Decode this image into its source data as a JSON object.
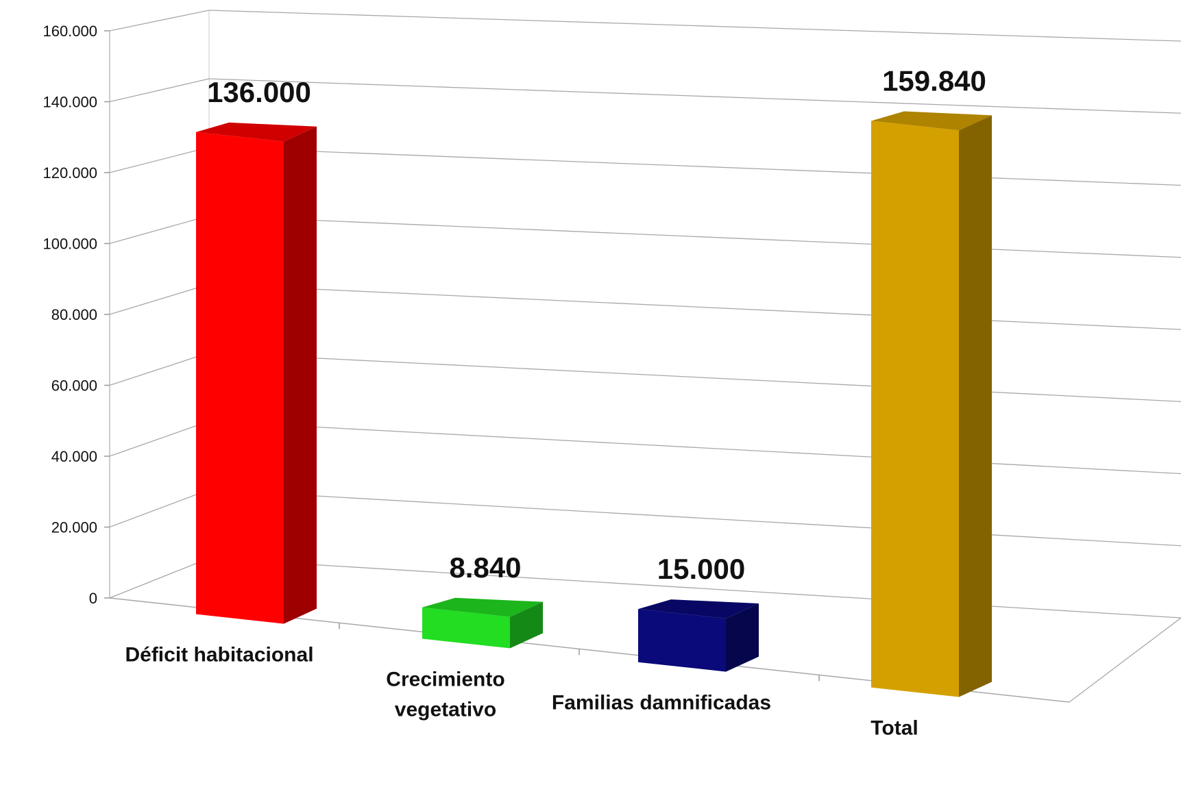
{
  "chart_data": {
    "type": "bar",
    "title": "",
    "xlabel": "",
    "ylabel": "",
    "ylim": [
      0,
      160000
    ],
    "yticks": [
      0,
      20000,
      40000,
      60000,
      80000,
      100000,
      120000,
      140000,
      160000
    ],
    "ytick_labels": [
      "0",
      "20.000",
      "40.000",
      "60.000",
      "80.000",
      "100.000",
      "120.000",
      "140.000",
      "160.000"
    ],
    "categories": [
      [
        "Déficit habitacional"
      ],
      [
        "Crecimiento",
        "vegetativo"
      ],
      [
        "Familias damnificadas"
      ],
      [
        "Total"
      ]
    ],
    "values": [
      136000,
      8840,
      15000,
      159840
    ],
    "data_labels": [
      "136.000",
      "8.840",
      "15.000",
      "159.840"
    ],
    "colors": [
      "#ff0000",
      "#22dd22",
      "#0a0a7a",
      "#d4a000"
    ],
    "grid": true,
    "legend": "none",
    "style": "3d-column"
  }
}
